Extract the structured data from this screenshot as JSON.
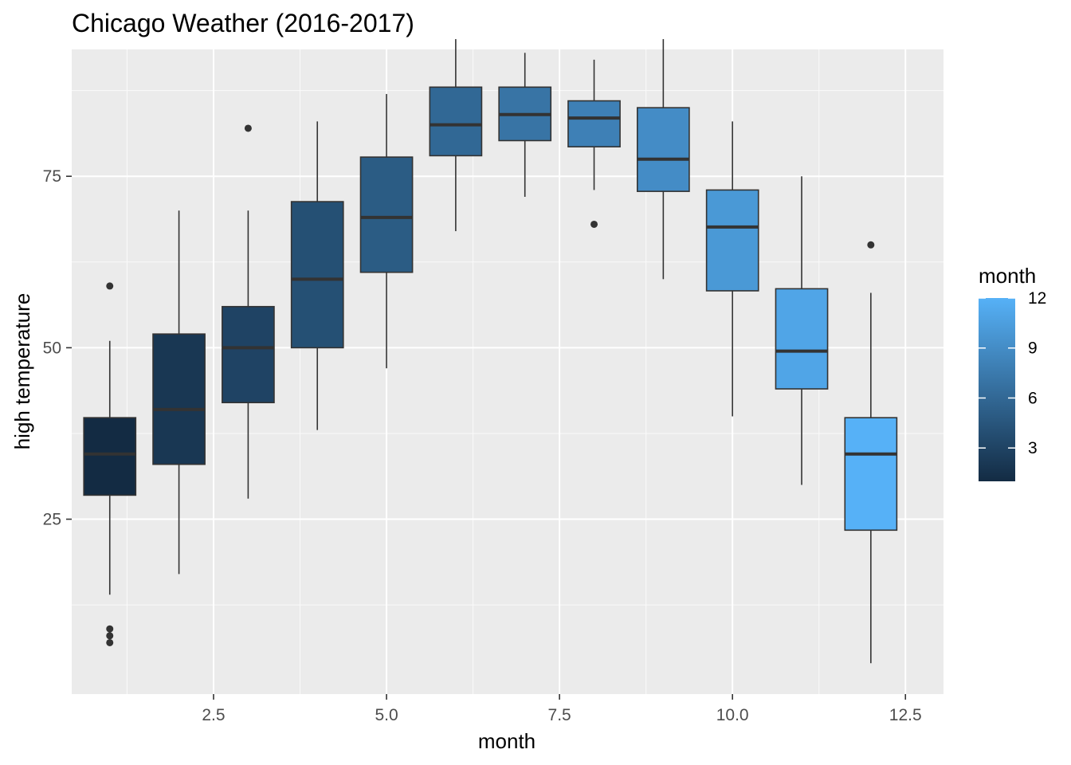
{
  "chart_data": {
    "type": "box",
    "title": "Chicago Weather (2016-2017)",
    "xlabel": "month",
    "ylabel": "high temperature",
    "xlim": [
      0.45,
      13.05
    ],
    "ylim": [
      -0.5,
      93.5
    ],
    "x_ticks": [
      2.5,
      5.0,
      7.5,
      10.0,
      12.5
    ],
    "x_tick_labels": [
      "2.5",
      "5.0",
      "7.5",
      "10.0",
      "12.5"
    ],
    "y_ticks": [
      25,
      50,
      75
    ],
    "y_tick_labels": [
      "25",
      "50",
      "75"
    ],
    "grid": true,
    "legend": {
      "title": "month",
      "placement": "right",
      "type": "colorbar",
      "range": [
        1,
        12
      ],
      "breaks": [
        3,
        6,
        9,
        12
      ],
      "break_labels": [
        "3",
        "6",
        "9",
        "12"
      ],
      "low_color": "#132B43",
      "high_color": "#56B1F7"
    },
    "boxes": [
      {
        "month": 1,
        "lower_whisker": 14,
        "q1": 28.5,
        "median": 34.5,
        "q3": 39.8,
        "upper_whisker": 51,
        "outliers": [
          59,
          9,
          8,
          7
        ]
      },
      {
        "month": 2,
        "lower_whisker": 17,
        "q1": 33,
        "median": 41,
        "q3": 52,
        "upper_whisker": 70,
        "outliers": []
      },
      {
        "month": 3,
        "lower_whisker": 28,
        "q1": 42,
        "median": 50,
        "q3": 56,
        "upper_whisker": 70,
        "outliers": [
          82
        ]
      },
      {
        "month": 4,
        "lower_whisker": 38,
        "q1": 50,
        "median": 60,
        "q3": 71.3,
        "upper_whisker": 83,
        "outliers": []
      },
      {
        "month": 5,
        "lower_whisker": 47,
        "q1": 61,
        "median": 69,
        "q3": 77.8,
        "upper_whisker": 87,
        "outliers": []
      },
      {
        "month": 6,
        "lower_whisker": 67,
        "q1": 78,
        "median": 82.5,
        "q3": 88,
        "upper_whisker": 95,
        "outliers": []
      },
      {
        "month": 7,
        "lower_whisker": 72,
        "q1": 80.2,
        "median": 84,
        "q3": 88,
        "upper_whisker": 93,
        "outliers": []
      },
      {
        "month": 8,
        "lower_whisker": 73,
        "q1": 79.3,
        "median": 83.5,
        "q3": 86,
        "upper_whisker": 92,
        "outliers": [
          68
        ]
      },
      {
        "month": 9,
        "lower_whisker": 60,
        "q1": 72.8,
        "median": 77.5,
        "q3": 85,
        "upper_whisker": 95,
        "outliers": []
      },
      {
        "month": 10,
        "lower_whisker": 40,
        "q1": 58.3,
        "median": 67.6,
        "q3": 73,
        "upper_whisker": 83,
        "outliers": []
      },
      {
        "month": 11,
        "lower_whisker": 30,
        "q1": 44,
        "median": 49.5,
        "q3": 58.6,
        "upper_whisker": 75,
        "outliers": []
      },
      {
        "month": 12,
        "lower_whisker": 4,
        "q1": 23.4,
        "median": 34.5,
        "q3": 39.8,
        "upper_whisker": 58,
        "outliers": [
          65
        ]
      }
    ]
  }
}
